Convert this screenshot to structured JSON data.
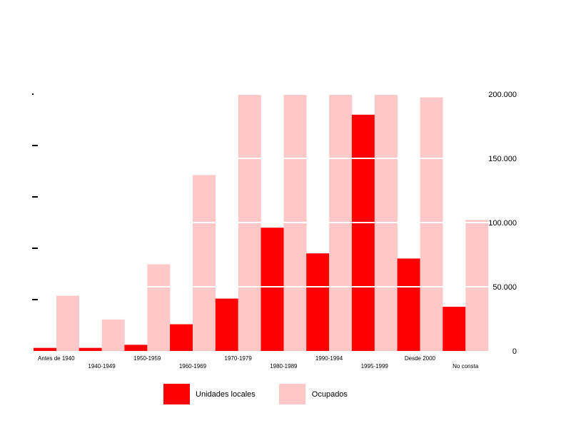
{
  "chart_data": {
    "type": "bar",
    "categories": [
      "Antes de 1940",
      "1940-1949",
      "1950-1959",
      "1960-1969",
      "1970-1979",
      "1980-1989",
      "1990-1994",
      "1995-1999",
      "Desde 2000",
      "No consta"
    ],
    "series": [
      {
        "name": "Unidades locales",
        "color": "#ff0000",
        "axis": "left",
        "values": [
          300,
          300,
          600,
          2600,
          5100,
          12000,
          9500,
          23000,
          9000,
          4300
        ]
      },
      {
        "name": "Ocupados",
        "color": "#ffc8c8",
        "axis": "right",
        "values": [
          43000,
          24500,
          67500,
          137000,
          200000,
          200000,
          200000,
          200000,
          197500,
          102000
        ]
      }
    ],
    "y_right": {
      "ticks": [
        0,
        50000,
        100000,
        150000,
        200000
      ],
      "tick_labels": [
        "0",
        "50.000",
        "100.000",
        "150.000",
        "200.000"
      ],
      "range": [
        0,
        200000
      ]
    },
    "y_left": {
      "ticks": [
        0,
        5000,
        10000,
        15000,
        20000,
        25000
      ],
      "range": [
        0,
        25000
      ],
      "labels_shown": false
    },
    "legend": {
      "placement": "bottom-center",
      "entries": [
        "Unidades locales",
        "Ocupados"
      ]
    },
    "grid": "white lines through bars"
  }
}
